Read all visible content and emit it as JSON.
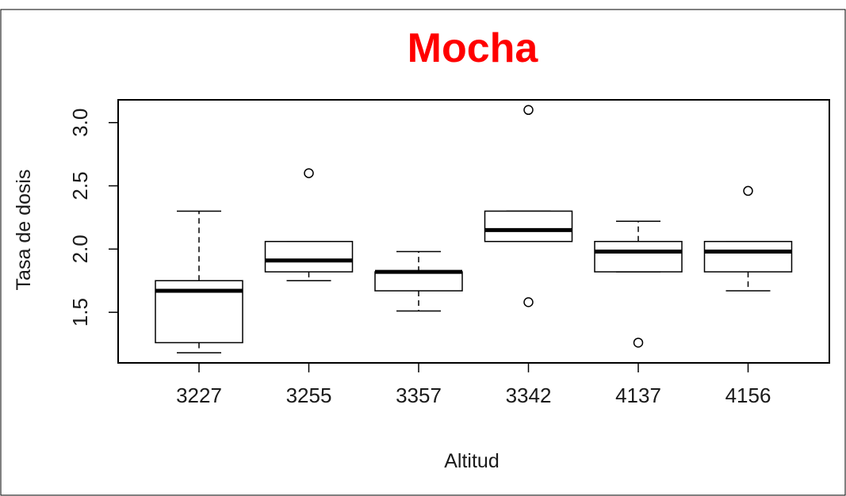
{
  "chart_data": {
    "type": "boxplot",
    "title": "Mocha",
    "title_color": "#ff0000",
    "xlabel": "Altitud",
    "ylabel": "Tasa de dosis",
    "ylim": [
      1.1,
      3.18
    ],
    "yticks": [
      1.5,
      2.0,
      2.5,
      3.0
    ],
    "ytick_labels": [
      "1.5",
      "2.0",
      "2.5",
      "3.0"
    ],
    "grid": false,
    "categories": [
      "3227",
      "3255",
      "3357",
      "3342",
      "4137",
      "4156"
    ],
    "boxes": [
      {
        "category": "3227",
        "whisker_low": 1.18,
        "q1": 1.26,
        "median": 1.67,
        "q3": 1.75,
        "whisker_high": 2.3,
        "outliers": []
      },
      {
        "category": "3255",
        "whisker_low": 1.75,
        "q1": 1.82,
        "median": 1.91,
        "q3": 2.06,
        "whisker_high": 2.06,
        "outliers": [
          2.6
        ]
      },
      {
        "category": "3357",
        "whisker_low": 1.51,
        "q1": 1.67,
        "median": 1.82,
        "q3": 1.82,
        "whisker_high": 1.98,
        "outliers": []
      },
      {
        "category": "3342",
        "whisker_low": 2.06,
        "q1": 2.06,
        "median": 2.15,
        "q3": 2.3,
        "whisker_high": 2.3,
        "outliers": [
          3.1,
          1.58
        ]
      },
      {
        "category": "4137",
        "whisker_low": 1.82,
        "q1": 1.82,
        "median": 1.98,
        "q3": 2.06,
        "whisker_high": 2.22,
        "outliers": [
          1.26
        ]
      },
      {
        "category": "4156",
        "whisker_low": 1.67,
        "q1": 1.82,
        "median": 1.98,
        "q3": 2.06,
        "whisker_high": 2.06,
        "outliers": [
          2.46
        ]
      }
    ]
  }
}
